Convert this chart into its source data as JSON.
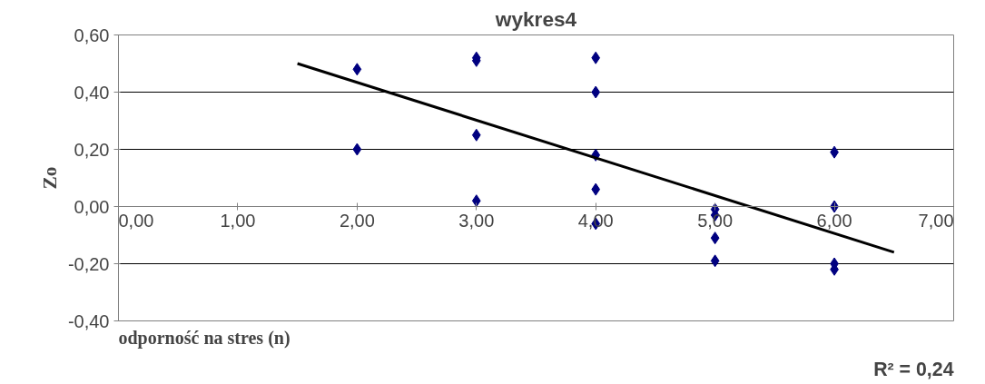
{
  "chart_data": {
    "type": "scatter",
    "title": "wykres4",
    "xlabel": "odporność na stres (n)",
    "ylabel": "Zo",
    "annotations": [
      "R² = 0,24"
    ],
    "series": [
      {
        "color": "#000080",
        "marker": "diamond",
        "x": [
          2,
          2,
          3,
          3,
          3,
          3,
          4,
          4,
          4,
          4,
          4,
          5,
          5,
          5,
          5,
          6,
          6,
          6,
          6
        ],
        "values": [
          0.48,
          0.2,
          0.52,
          0.51,
          0.25,
          0.02,
          0.52,
          0.4,
          0.18,
          0.06,
          -0.06,
          -0.01,
          -0.03,
          -0.11,
          -0.19,
          0.19,
          0.0,
          -0.2,
          -0.22
        ]
      },
      {
        "type": "line",
        "color": "#000000",
        "marker": "none",
        "line_style": "solid",
        "x": [
          1.5,
          6.5
        ],
        "values": [
          0.5,
          -0.16
        ]
      }
    ],
    "xlim": [
      0,
      7
    ],
    "ylim": [
      -0.4,
      0.6
    ],
    "xticks": [
      {
        "value": 0,
        "label": "0,00"
      },
      {
        "value": 1,
        "label": "1,00"
      },
      {
        "value": 2,
        "label": "2,00"
      },
      {
        "value": 3,
        "label": "3,00"
      },
      {
        "value": 4,
        "label": "4,00"
      },
      {
        "value": 5,
        "label": "5,00"
      },
      {
        "value": 6,
        "label": "6,00"
      },
      {
        "value": 7,
        "label": "7,00"
      }
    ],
    "yticks": [
      {
        "value": -0.4,
        "label": "-0,40"
      },
      {
        "value": -0.2,
        "label": "-0,20"
      },
      {
        "value": 0,
        "label": "0,00"
      },
      {
        "value": 0.2,
        "label": "0,20"
      },
      {
        "value": 0.4,
        "label": "0,40"
      },
      {
        "value": 0.6,
        "label": "0,60"
      }
    ],
    "grid": "y"
  }
}
